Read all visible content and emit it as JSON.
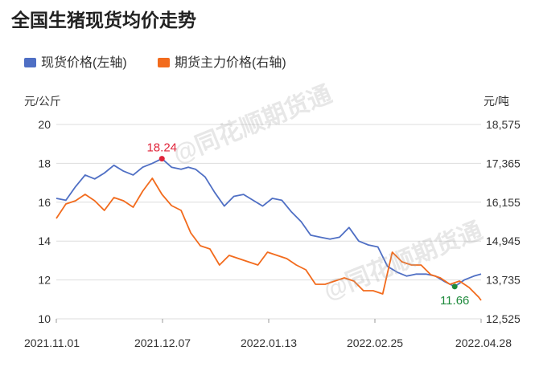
{
  "title": "全国生猪现货均价走势",
  "legend": [
    {
      "label": "现货价格(左轴)",
      "color": "#4F6FC4"
    },
    {
      "label": "期货主力价格(右轴)",
      "color": "#F26B1D"
    }
  ],
  "watermark": "@同花顺期货通",
  "chart_data": {
    "type": "line",
    "left_axis": {
      "unit": "元/公斤",
      "min": 10,
      "max": 20,
      "ticks": [
        "10",
        "12",
        "14",
        "16",
        "18",
        "20"
      ]
    },
    "right_axis": {
      "unit": "元/吨",
      "min": 12525,
      "max": 18575,
      "ticks": [
        "12,525",
        "13,735",
        "14,945",
        "16,155",
        "17,365",
        "18,575"
      ]
    },
    "x_ticks": [
      "2021.11.01",
      "2021.12.07",
      "2022.01.13",
      "2022.02.25",
      "2022.04.28"
    ],
    "x_range": [
      0,
      177
    ],
    "series": [
      {
        "name": "现货价格(左轴)",
        "axis": "left",
        "color": "#4F6FC4",
        "x": [
          0,
          4,
          8,
          12,
          16,
          20,
          24,
          28,
          32,
          36,
          40,
          44,
          48,
          52,
          55,
          58,
          62,
          66,
          70,
          74,
          78,
          82,
          86,
          90,
          94,
          98,
          102,
          106,
          110,
          114,
          118,
          122,
          126,
          130,
          134,
          138,
          142,
          146,
          150,
          154,
          158,
          162,
          166,
          170,
          174,
          177
        ],
        "y": [
          16.2,
          16.1,
          16.8,
          17.4,
          17.2,
          17.5,
          17.9,
          17.6,
          17.4,
          17.8,
          18.0,
          18.24,
          17.8,
          17.7,
          17.8,
          17.7,
          17.3,
          16.5,
          15.8,
          16.3,
          16.4,
          16.1,
          15.8,
          16.2,
          16.1,
          15.5,
          15.0,
          14.3,
          14.2,
          14.1,
          14.2,
          14.7,
          14.0,
          13.8,
          13.7,
          12.7,
          12.4,
          12.2,
          12.3,
          12.3,
          12.2,
          11.9,
          11.66,
          12.0,
          12.2,
          12.3
        ]
      },
      {
        "name": "期货主力价格(右轴)",
        "axis": "right",
        "color": "#F26B1D",
        "x": [
          0,
          4,
          8,
          12,
          16,
          20,
          24,
          28,
          32,
          36,
          40,
          44,
          48,
          52,
          56,
          60,
          64,
          68,
          72,
          76,
          80,
          84,
          88,
          92,
          96,
          100,
          104,
          108,
          112,
          116,
          120,
          124,
          128,
          132,
          136,
          140,
          144,
          148,
          152,
          156,
          160,
          164,
          168,
          172,
          176,
          177
        ],
        "y": [
          15650,
          16100,
          16200,
          16400,
          16200,
          15900,
          16300,
          16200,
          16000,
          16500,
          16900,
          16400,
          16050,
          15900,
          15200,
          14800,
          14700,
          14200,
          14500,
          14400,
          14300,
          14200,
          14600,
          14500,
          14400,
          14200,
          14050,
          13600,
          13600,
          13700,
          13800,
          13700,
          13400,
          13400,
          13300,
          14600,
          14300,
          14200,
          14200,
          13900,
          13800,
          13600,
          13700,
          13500,
          13200,
          13100
        ]
      }
    ],
    "annotations": [
      {
        "text": "18.24",
        "x": 44,
        "y": 18.24,
        "axis": "left",
        "color": "#E0243A"
      },
      {
        "text": "11.66",
        "x": 166,
        "y": 11.66,
        "axis": "left",
        "color": "#1E8A3C"
      }
    ]
  }
}
